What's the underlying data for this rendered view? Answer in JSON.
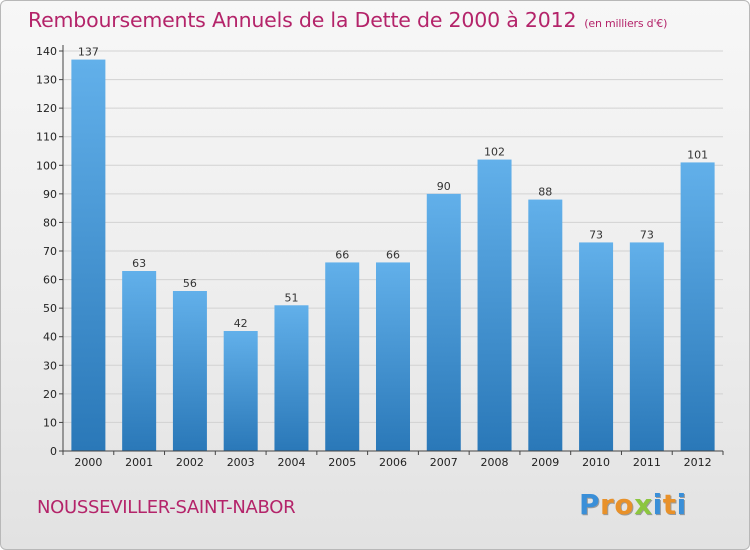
{
  "chart_data": {
    "type": "bar",
    "title": "Remboursements Annuels de la Dette de 2000 à 2012",
    "unit_note": "(en milliers d'€)",
    "categories": [
      "2000",
      "2001",
      "2002",
      "2003",
      "2004",
      "2005",
      "2006",
      "2007",
      "2008",
      "2009",
      "2010",
      "2011",
      "2012"
    ],
    "values": [
      137,
      63,
      56,
      42,
      51,
      66,
      66,
      90,
      102,
      88,
      73,
      73,
      101
    ],
    "ylim": [
      0,
      140
    ],
    "yticks": [
      0,
      10,
      20,
      30,
      40,
      50,
      60,
      70,
      80,
      90,
      100,
      110,
      120,
      130,
      140
    ],
    "xlabel": "",
    "ylabel": "",
    "grid": true,
    "bar_color": "#3f94d6"
  },
  "footer": {
    "city": "NOUSSEVILLER-SAINT-NABOR",
    "logo_letters": [
      "P",
      "r",
      "o",
      "x",
      "i",
      "t",
      "i"
    ],
    "logo_colors": [
      "#3a8fd8",
      "#e8912a",
      "#e8912a",
      "#8cc63f",
      "#3a8fd8",
      "#e8912a",
      "#3a8fd8"
    ]
  },
  "colors": {
    "accent": "#b4246a"
  }
}
